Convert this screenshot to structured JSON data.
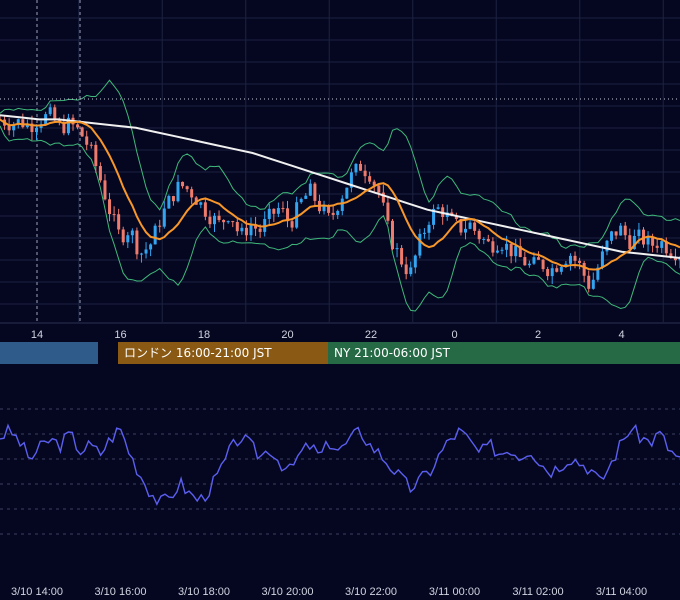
{
  "chart_data": [
    {
      "type": "candlestick",
      "x_ticks": [
        "14",
        "16",
        "18",
        "20",
        "22",
        "0",
        "2",
        "4"
      ],
      "ylim": [
        0,
        100
      ],
      "colors": {
        "up": "#33a4f0",
        "down": "#ef7b6d",
        "sma_fast": "#f7972b",
        "sma_slow": "#f0f0f0",
        "bollinger": "#3fb87a",
        "background": "#050720",
        "grid": "#1c2240"
      },
      "price_path": [
        86,
        84,
        85,
        83,
        86,
        88,
        82,
        84,
        80,
        72,
        58,
        42,
        30,
        34,
        22,
        26,
        38,
        48,
        55,
        52,
        46,
        40,
        36,
        42,
        30,
        36,
        33,
        40,
        44,
        36,
        46,
        52,
        44,
        38,
        48,
        58,
        64,
        60,
        50,
        30,
        20,
        12,
        28,
        40,
        44,
        38,
        34,
        36,
        30,
        26,
        28,
        24,
        20,
        16,
        18,
        14,
        18,
        22,
        16,
        6,
        18,
        30,
        34,
        28,
        30,
        26,
        28,
        24,
        22
      ],
      "sma_slow_path": [
        88,
        87,
        86,
        86,
        85,
        84,
        83,
        82,
        80,
        78,
        76,
        74,
        72,
        70,
        67,
        64,
        61,
        58,
        55,
        52,
        49,
        46,
        43,
        41,
        39,
        37,
        35,
        33,
        31,
        29,
        27,
        25,
        23,
        22,
        21,
        20
      ],
      "sessions": [
        {
          "label": "",
          "color": "#2f5b8a"
        },
        {
          "label": "ロンドン 16:00-21:00 JST",
          "color": "#8a5a14"
        },
        {
          "label": "NY 21:00-06:00 JST",
          "color": "#256a45"
        }
      ]
    },
    {
      "type": "line",
      "ylim": [
        0,
        100
      ],
      "color": "#5b5ff0",
      "values": [
        68,
        72,
        64,
        52,
        60,
        66,
        62,
        70,
        58,
        62,
        56,
        66,
        74,
        56,
        42,
        30,
        22,
        26,
        36,
        28,
        24,
        32,
        44,
        58,
        68,
        62,
        54,
        60,
        50,
        44,
        56,
        62,
        54,
        64,
        58,
        66,
        72,
        62,
        56,
        48,
        40,
        32,
        38,
        44,
        56,
        66,
        72,
        64,
        56,
        62,
        56,
        60,
        54,
        60,
        50,
        44,
        48,
        54,
        50,
        46,
        36,
        48,
        62,
        74,
        68,
        64,
        70,
        58,
        52
      ],
      "x_labels": [
        "3/10 14:00",
        "3/10 16:00",
        "3/10 18:00",
        "3/10 20:00",
        "3/10 22:00",
        "3/11 00:00",
        "3/11 02:00",
        "3/11 04:00"
      ]
    }
  ]
}
